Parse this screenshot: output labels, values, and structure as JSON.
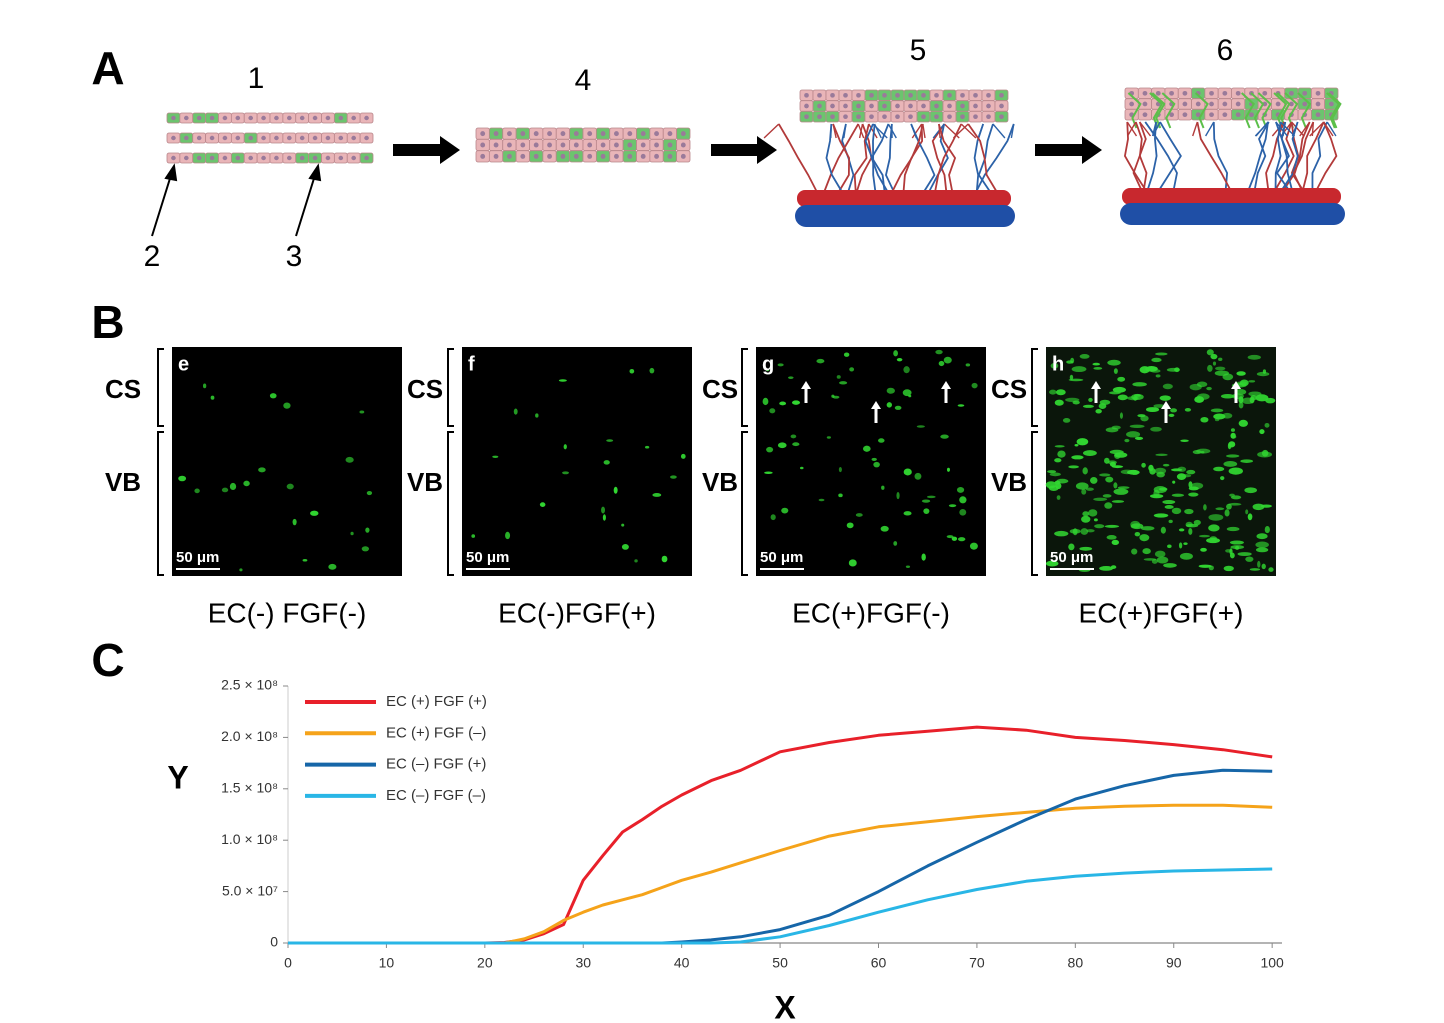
{
  "panel_a": {
    "label": "A",
    "steps": [
      "1",
      "4",
      "5",
      "6"
    ],
    "pointers": [
      "2",
      "3"
    ]
  },
  "panel_b": {
    "label": "B",
    "region_labels": [
      "CS",
      "VB"
    ],
    "scale_bar": "50 μm",
    "images": [
      {
        "letter": "e",
        "caption": "EC(-) FGF(-)"
      },
      {
        "letter": "f",
        "caption": "EC(-)FGF(+)"
      },
      {
        "letter": "g",
        "caption": "EC(+)FGF(-)"
      },
      {
        "letter": "h",
        "caption": "EC(+)FGF(+)"
      }
    ]
  },
  "panel_c_label": "C",
  "chart_data": {
    "type": "line",
    "x_label": "X",
    "y_label": "Y",
    "x": [
      0,
      10,
      20,
      22,
      24,
      26,
      28,
      30,
      32,
      34,
      36,
      38,
      40,
      43,
      46,
      50,
      55,
      60,
      65,
      70,
      75,
      80,
      85,
      90,
      95,
      100
    ],
    "series": [
      {
        "name": "EC (+) FGF (+)",
        "color": "#e8202a",
        "values": [
          0,
          0,
          0,
          500000,
          3000000,
          9000000,
          18000000,
          61000000,
          85000000,
          108000000,
          120000000,
          133000000,
          144000000,
          158000000,
          168000000,
          186000000,
          195000000,
          202000000,
          206000000,
          210000000,
          207000000,
          200000000,
          197000000,
          193000000,
          188000000,
          181000000
        ]
      },
      {
        "name": "EC (+) FGF (–)",
        "color": "#f5a31a",
        "values": [
          0,
          0,
          0,
          0,
          4000000,
          11000000,
          22000000,
          30000000,
          37000000,
          42000000,
          47000000,
          54000000,
          61000000,
          69000000,
          78000000,
          90000000,
          104000000,
          113000000,
          118000000,
          123000000,
          127000000,
          131000000,
          133000000,
          134000000,
          134000000,
          132000000
        ]
      },
      {
        "name": "EC (–) FGF (+)",
        "color": "#1666a8",
        "values": [
          0,
          0,
          0,
          0,
          0,
          0,
          0,
          0,
          0,
          0,
          0,
          0,
          1000000,
          3000000,
          6000000,
          13000000,
          27000000,
          50000000,
          75000000,
          98000000,
          120000000,
          140000000,
          153000000,
          163000000,
          168000000,
          167000000
        ]
      },
      {
        "name": "EC (–) FGF (–)",
        "color": "#29b6e6",
        "values": [
          0,
          0,
          0,
          0,
          0,
          0,
          0,
          0,
          0,
          0,
          0,
          0,
          0,
          0,
          1000000,
          6000000,
          17000000,
          30000000,
          42000000,
          52000000,
          60000000,
          65000000,
          68000000,
          70000000,
          71000000,
          72000000
        ]
      }
    ],
    "xlim": [
      0,
      101
    ],
    "xticks": [
      0,
      10,
      20,
      30,
      40,
      50,
      60,
      70,
      80,
      90,
      100
    ],
    "ylim": [
      0,
      250000000
    ],
    "yticks": [
      0,
      {
        "value": 50000000,
        "label": "5.0 × 10⁷"
      },
      {
        "value": 100000000,
        "label": "1.0 × 10⁸"
      },
      {
        "value": 150000000,
        "label": "1.5 × 10⁸"
      },
      {
        "value": 200000000,
        "label": "2.0 × 10⁸"
      },
      {
        "value": 250000000,
        "label": "2.5 × 10⁸"
      }
    ],
    "legend": "upper left",
    "grid": false
  }
}
